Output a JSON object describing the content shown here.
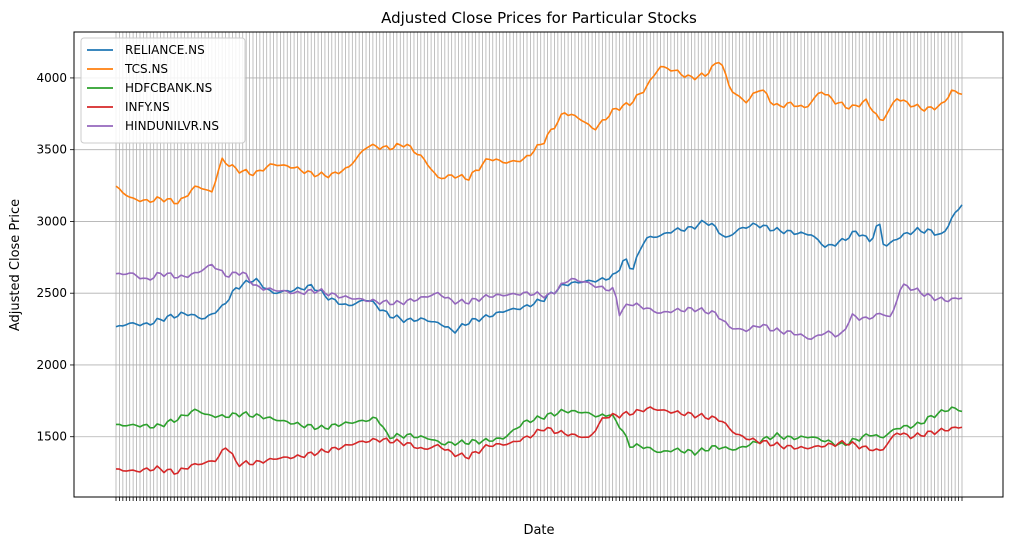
{
  "chart_data": {
    "type": "line",
    "title": "Adjusted Close Prices for Particular Stocks",
    "xlabel": "Date",
    "ylabel": "Adjusted Close Price",
    "ylim": [
      1080,
      4320
    ],
    "yticks": [
      1500,
      2000,
      2500,
      3000,
      3500,
      4000
    ],
    "grid": true,
    "legend_position": "top-left",
    "x_count": 248,
    "series": [
      {
        "name": "RELIANCE.NS",
        "color": "#1f77b4",
        "keyframes": [
          [
            0,
            2260
          ],
          [
            5,
            2290
          ],
          [
            12,
            2280
          ],
          [
            20,
            2330
          ],
          [
            28,
            2360
          ],
          [
            35,
            2320
          ],
          [
            42,
            2400
          ],
          [
            48,
            2540
          ],
          [
            55,
            2600
          ],
          [
            62,
            2500
          ],
          [
            70,
            2520
          ],
          [
            78,
            2550
          ],
          [
            85,
            2460
          ],
          [
            92,
            2410
          ],
          [
            100,
            2460
          ],
          [
            108,
            2350
          ],
          [
            115,
            2310
          ],
          [
            122,
            2320
          ],
          [
            130,
            2280
          ],
          [
            134,
            2230
          ],
          [
            140,
            2300
          ],
          [
            148,
            2340
          ],
          [
            155,
            2380
          ],
          [
            162,
            2400
          ],
          [
            170,
            2460
          ],
          [
            178,
            2560
          ],
          [
            185,
            2580
          ],
          [
            192,
            2590
          ],
          [
            198,
            2620
          ],
          [
            202,
            2740
          ],
          [
            205,
            2660
          ],
          [
            210,
            2880
          ],
          [
            216,
            2900
          ],
          [
            222,
            2940
          ],
          [
            228,
            2950
          ],
          [
            234,
            3000
          ],
          [
            238,
            2960
          ],
          [
            242,
            2880
          ],
          [
            248,
            2950
          ],
          [
            254,
            2980
          ],
          [
            262,
            2940
          ],
          [
            270,
            2920
          ],
          [
            276,
            2910
          ],
          [
            282,
            2820
          ],
          [
            288,
            2860
          ],
          [
            294,
            2930
          ],
          [
            300,
            2860
          ],
          [
            303,
            3010
          ],
          [
            305,
            2820
          ],
          [
            312,
            2900
          ],
          [
            318,
            2940
          ],
          [
            324,
            2930
          ],
          [
            328,
            2900
          ],
          [
            333,
            3050
          ],
          [
            336,
            3120
          ]
        ]
      },
      {
        "name": "TCS.NS",
        "color": "#ff7f0e",
        "keyframes": [
          [
            0,
            3240
          ],
          [
            6,
            3160
          ],
          [
            12,
            3140
          ],
          [
            18,
            3160
          ],
          [
            25,
            3130
          ],
          [
            32,
            3250
          ],
          [
            38,
            3200
          ],
          [
            42,
            3430
          ],
          [
            48,
            3360
          ],
          [
            55,
            3330
          ],
          [
            62,
            3400
          ],
          [
            70,
            3380
          ],
          [
            78,
            3330
          ],
          [
            85,
            3320
          ],
          [
            92,
            3370
          ],
          [
            100,
            3530
          ],
          [
            108,
            3510
          ],
          [
            115,
            3540
          ],
          [
            122,
            3440
          ],
          [
            128,
            3300
          ],
          [
            134,
            3320
          ],
          [
            140,
            3300
          ],
          [
            148,
            3440
          ],
          [
            155,
            3410
          ],
          [
            162,
            3430
          ],
          [
            170,
            3560
          ],
          [
            178,
            3760
          ],
          [
            184,
            3720
          ],
          [
            190,
            3640
          ],
          [
            198,
            3780
          ],
          [
            204,
            3820
          ],
          [
            210,
            3920
          ],
          [
            216,
            4080
          ],
          [
            222,
            4050
          ],
          [
            228,
            4000
          ],
          [
            234,
            4020
          ],
          [
            240,
            4130
          ],
          [
            244,
            3920
          ],
          [
            250,
            3830
          ],
          [
            256,
            3930
          ],
          [
            262,
            3800
          ],
          [
            268,
            3820
          ],
          [
            274,
            3790
          ],
          [
            280,
            3910
          ],
          [
            286,
            3830
          ],
          [
            292,
            3790
          ],
          [
            298,
            3840
          ],
          [
            304,
            3690
          ],
          [
            310,
            3860
          ],
          [
            316,
            3810
          ],
          [
            322,
            3780
          ],
          [
            328,
            3810
          ],
          [
            332,
            3910
          ],
          [
            336,
            3890
          ]
        ]
      },
      {
        "name": "HDFCBANK.NS",
        "color": "#2ca02c",
        "keyframes": [
          [
            0,
            1580
          ],
          [
            8,
            1580
          ],
          [
            16,
            1570
          ],
          [
            24,
            1620
          ],
          [
            32,
            1690
          ],
          [
            36,
            1650
          ],
          [
            42,
            1640
          ],
          [
            50,
            1660
          ],
          [
            58,
            1640
          ],
          [
            66,
            1610
          ],
          [
            74,
            1580
          ],
          [
            82,
            1560
          ],
          [
            90,
            1590
          ],
          [
            98,
            1610
          ],
          [
            104,
            1630
          ],
          [
            108,
            1500
          ],
          [
            116,
            1510
          ],
          [
            124,
            1490
          ],
          [
            130,
            1450
          ],
          [
            138,
            1460
          ],
          [
            146,
            1470
          ],
          [
            154,
            1490
          ],
          [
            162,
            1600
          ],
          [
            170,
            1640
          ],
          [
            178,
            1680
          ],
          [
            186,
            1670
          ],
          [
            192,
            1640
          ],
          [
            196,
            1660
          ],
          [
            200,
            1580
          ],
          [
            204,
            1440
          ],
          [
            210,
            1430
          ],
          [
            216,
            1390
          ],
          [
            222,
            1410
          ],
          [
            230,
            1390
          ],
          [
            238,
            1430
          ],
          [
            246,
            1410
          ],
          [
            254,
            1460
          ],
          [
            262,
            1510
          ],
          [
            268,
            1490
          ],
          [
            276,
            1500
          ],
          [
            282,
            1470
          ],
          [
            288,
            1440
          ],
          [
            294,
            1480
          ],
          [
            300,
            1520
          ],
          [
            304,
            1490
          ],
          [
            310,
            1560
          ],
          [
            318,
            1580
          ],
          [
            326,
            1660
          ],
          [
            332,
            1700
          ],
          [
            336,
            1680
          ]
        ]
      },
      {
        "name": "INFY.NS",
        "color": "#d62728",
        "keyframes": [
          [
            0,
            1270
          ],
          [
            8,
            1260
          ],
          [
            16,
            1280
          ],
          [
            24,
            1250
          ],
          [
            30,
            1300
          ],
          [
            36,
            1320
          ],
          [
            40,
            1340
          ],
          [
            44,
            1440
          ],
          [
            48,
            1310
          ],
          [
            56,
            1320
          ],
          [
            64,
            1350
          ],
          [
            72,
            1360
          ],
          [
            80,
            1390
          ],
          [
            88,
            1420
          ],
          [
            96,
            1460
          ],
          [
            104,
            1480
          ],
          [
            110,
            1470
          ],
          [
            116,
            1450
          ],
          [
            122,
            1410
          ],
          [
            128,
            1440
          ],
          [
            134,
            1380
          ],
          [
            140,
            1360
          ],
          [
            148,
            1440
          ],
          [
            156,
            1450
          ],
          [
            164,
            1500
          ],
          [
            170,
            1560
          ],
          [
            176,
            1530
          ],
          [
            182,
            1510
          ],
          [
            188,
            1490
          ],
          [
            194,
            1640
          ],
          [
            200,
            1650
          ],
          [
            206,
            1670
          ],
          [
            212,
            1700
          ],
          [
            218,
            1680
          ],
          [
            226,
            1660
          ],
          [
            234,
            1640
          ],
          [
            240,
            1620
          ],
          [
            246,
            1520
          ],
          [
            252,
            1480
          ],
          [
            258,
            1460
          ],
          [
            266,
            1430
          ],
          [
            274,
            1420
          ],
          [
            282,
            1440
          ],
          [
            290,
            1460
          ],
          [
            298,
            1420
          ],
          [
            304,
            1400
          ],
          [
            310,
            1530
          ],
          [
            316,
            1500
          ],
          [
            324,
            1530
          ],
          [
            330,
            1550
          ],
          [
            336,
            1570
          ]
        ]
      },
      {
        "name": "HINDUNILVR.NS",
        "color": "#9467bd",
        "keyframes": [
          [
            0,
            2630
          ],
          [
            6,
            2640
          ],
          [
            12,
            2590
          ],
          [
            18,
            2640
          ],
          [
            26,
            2610
          ],
          [
            32,
            2640
          ],
          [
            38,
            2700
          ],
          [
            44,
            2620
          ],
          [
            50,
            2650
          ],
          [
            56,
            2540
          ],
          [
            64,
            2520
          ],
          [
            72,
            2500
          ],
          [
            80,
            2520
          ],
          [
            88,
            2480
          ],
          [
            96,
            2460
          ],
          [
            104,
            2440
          ],
          [
            112,
            2430
          ],
          [
            120,
            2460
          ],
          [
            128,
            2500
          ],
          [
            134,
            2440
          ],
          [
            140,
            2440
          ],
          [
            148,
            2480
          ],
          [
            156,
            2490
          ],
          [
            164,
            2500
          ],
          [
            172,
            2480
          ],
          [
            180,
            2600
          ],
          [
            186,
            2580
          ],
          [
            192,
            2540
          ],
          [
            198,
            2520
          ],
          [
            200,
            2360
          ],
          [
            204,
            2430
          ],
          [
            210,
            2400
          ],
          [
            216,
            2360
          ],
          [
            222,
            2380
          ],
          [
            230,
            2390
          ],
          [
            238,
            2360
          ],
          [
            244,
            2260
          ],
          [
            250,
            2240
          ],
          [
            256,
            2280
          ],
          [
            262,
            2240
          ],
          [
            270,
            2220
          ],
          [
            276,
            2180
          ],
          [
            282,
            2230
          ],
          [
            288,
            2200
          ],
          [
            292,
            2340
          ],
          [
            298,
            2320
          ],
          [
            304,
            2360
          ],
          [
            308,
            2330
          ],
          [
            312,
            2560
          ],
          [
            318,
            2520
          ],
          [
            324,
            2470
          ],
          [
            330,
            2450
          ],
          [
            336,
            2470
          ]
        ]
      }
    ]
  }
}
